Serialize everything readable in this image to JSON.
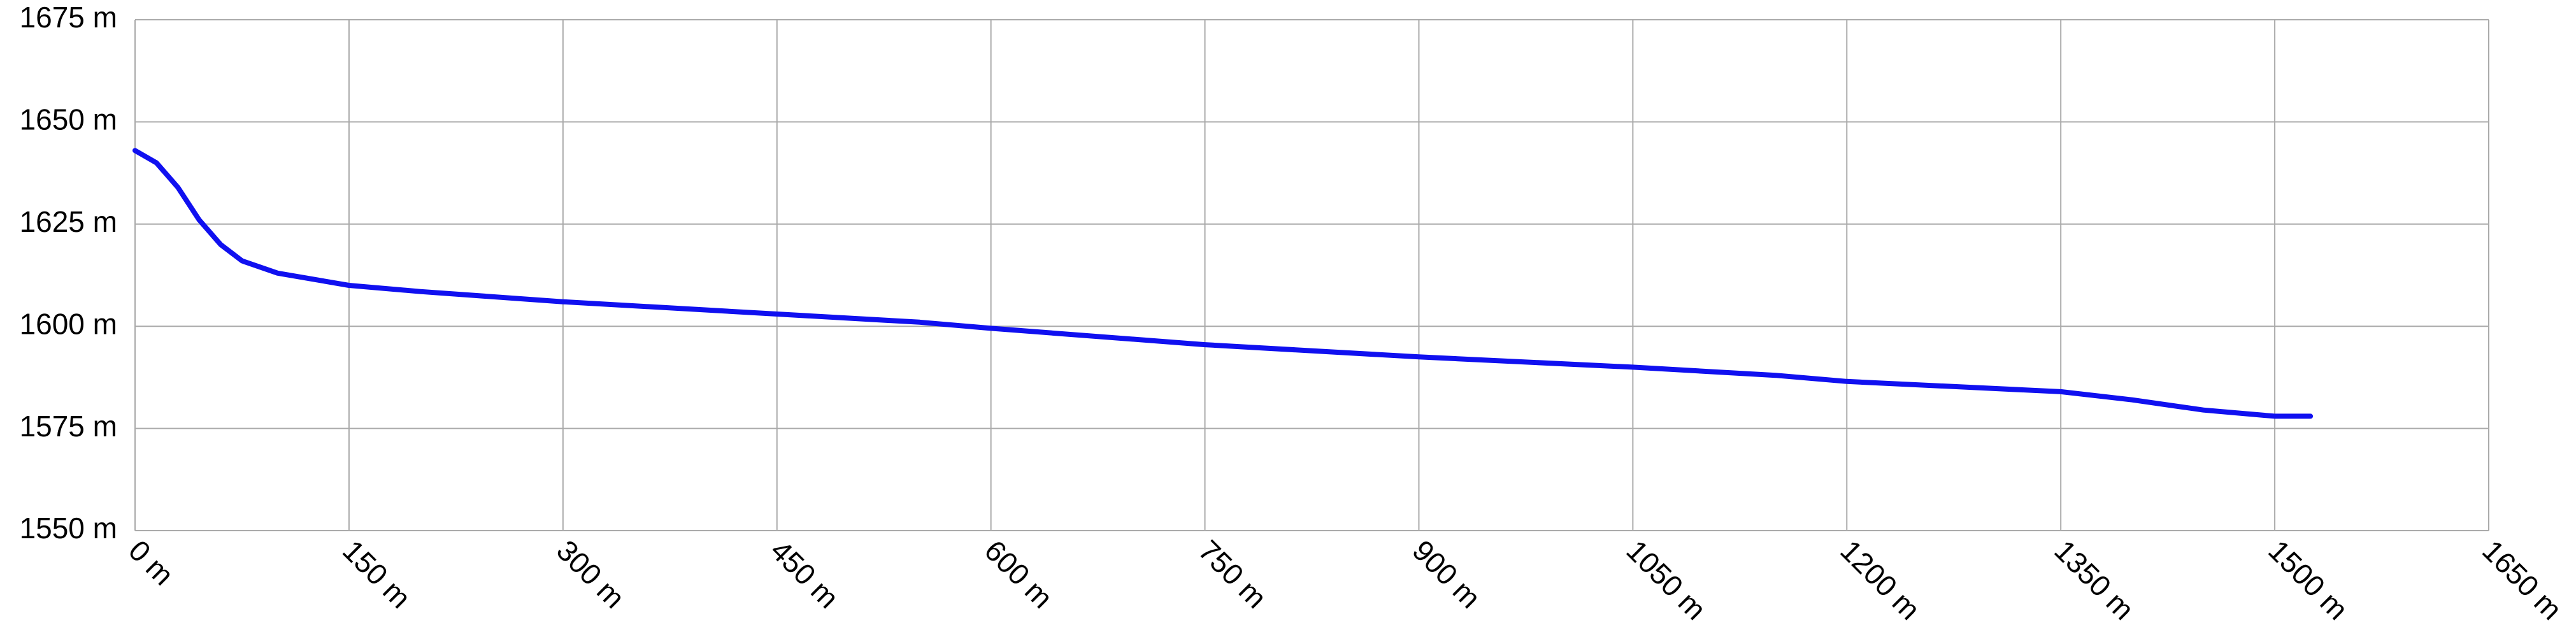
{
  "chart_data": {
    "type": "line",
    "x": [
      0,
      15,
      30,
      45,
      60,
      75,
      100,
      150,
      200,
      300,
      450,
      550,
      600,
      750,
      900,
      1050,
      1150,
      1200,
      1350,
      1400,
      1450,
      1500,
      1525
    ],
    "values": [
      1643,
      1640,
      1634,
      1626,
      1620,
      1616,
      1613,
      1610,
      1608.5,
      1606,
      1603,
      1601,
      1599.5,
      1595.5,
      1592.5,
      1590,
      1588,
      1586.5,
      1584,
      1582,
      1579.5,
      1578,
      1578
    ],
    "color": "#1010f0",
    "xlim": [
      0,
      1650
    ],
    "xticks": [
      {
        "value": 0,
        "label": "0 m"
      },
      {
        "value": 150,
        "label": "150 m"
      },
      {
        "value": 300,
        "label": "300 m"
      },
      {
        "value": 450,
        "label": "450 m"
      },
      {
        "value": 600,
        "label": "600 m"
      },
      {
        "value": 750,
        "label": "750 m"
      },
      {
        "value": 900,
        "label": "900 m"
      },
      {
        "value": 1050,
        "label": "1050 m"
      },
      {
        "value": 1200,
        "label": "1200 m"
      },
      {
        "value": 1350,
        "label": "1350 m"
      },
      {
        "value": 1500,
        "label": "1500 m"
      },
      {
        "value": 1650,
        "label": "1650 m"
      }
    ],
    "ylim": [
      1550,
      1675
    ],
    "yticks": [
      {
        "value": 1550,
        "label": "1550 m"
      },
      {
        "value": 1575,
        "label": "1575 m"
      },
      {
        "value": 1600,
        "label": "1600 m"
      },
      {
        "value": 1625,
        "label": "1625 m"
      },
      {
        "value": 1650,
        "label": "1650 m"
      },
      {
        "value": 1675,
        "label": "1675 m"
      }
    ],
    "grid": true
  }
}
